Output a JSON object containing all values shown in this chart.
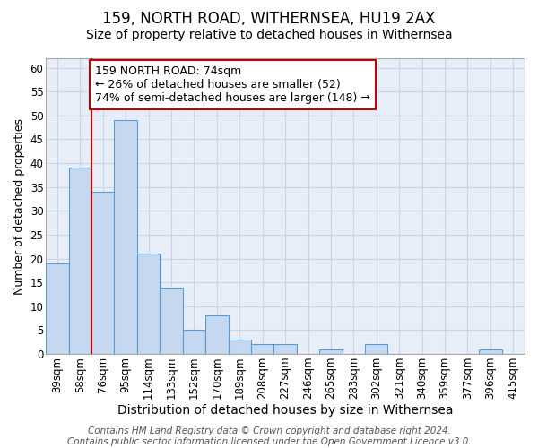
{
  "title": "159, NORTH ROAD, WITHERNSEA, HU19 2AX",
  "subtitle": "Size of property relative to detached houses in Withernsea",
  "xlabel": "Distribution of detached houses by size in Withernsea",
  "ylabel": "Number of detached properties",
  "categories": [
    "39sqm",
    "58sqm",
    "76sqm",
    "95sqm",
    "114sqm",
    "133sqm",
    "152sqm",
    "170sqm",
    "189sqm",
    "208sqm",
    "227sqm",
    "246sqm",
    "265sqm",
    "283sqm",
    "302sqm",
    "321sqm",
    "340sqm",
    "359sqm",
    "377sqm",
    "396sqm",
    "415sqm"
  ],
  "values": [
    19,
    39,
    34,
    49,
    21,
    14,
    5,
    8,
    3,
    2,
    2,
    0,
    1,
    0,
    2,
    0,
    0,
    0,
    0,
    1,
    0
  ],
  "bar_color": "#c5d8f0",
  "bar_edgecolor": "#5b9bd5",
  "vline_color": "#c00000",
  "annotation_line1": "159 NORTH ROAD: 74sqm",
  "annotation_line2": "← 26% of detached houses are smaller (52)",
  "annotation_line3": "74% of semi-detached houses are larger (148) →",
  "annotation_box_color": "white",
  "annotation_box_edgecolor": "#c00000",
  "ylim": [
    0,
    62
  ],
  "yticks": [
    0,
    5,
    10,
    15,
    20,
    25,
    30,
    35,
    40,
    45,
    50,
    55,
    60
  ],
  "grid_color": "#c8d4e8",
  "background_color": "#e8eef8",
  "footer_line1": "Contains HM Land Registry data © Crown copyright and database right 2024.",
  "footer_line2": "Contains public sector information licensed under the Open Government Licence v3.0.",
  "title_fontsize": 12,
  "subtitle_fontsize": 10,
  "ylabel_fontsize": 9,
  "xlabel_fontsize": 10,
  "tick_fontsize": 8.5,
  "annotation_fontsize": 9,
  "footer_fontsize": 7.5,
  "vline_idx": 2
}
